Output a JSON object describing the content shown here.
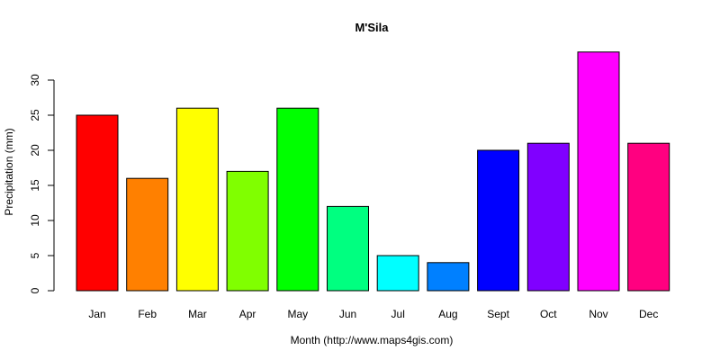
{
  "chart_data": {
    "type": "bar",
    "title": "M'Sila",
    "xlabel": "Month (http://www.maps4gis.com)",
    "ylabel": "Precipitation (mm)",
    "categories": [
      "Jan",
      "Feb",
      "Mar",
      "Apr",
      "May",
      "Jun",
      "Jul",
      "Aug",
      "Sept",
      "Oct",
      "Nov",
      "Dec"
    ],
    "values": [
      25,
      16,
      26,
      17,
      26,
      12,
      5,
      4,
      20,
      21,
      34,
      21
    ],
    "colors": [
      "#ff0000",
      "#ff8000",
      "#ffff00",
      "#80ff00",
      "#00ff00",
      "#00ff80",
      "#00ffff",
      "#0080ff",
      "#0000ff",
      "#8000ff",
      "#ff00ff",
      "#ff0080"
    ],
    "yticks": [
      0,
      5,
      10,
      15,
      20,
      25,
      30
    ],
    "ylim": [
      0,
      34
    ],
    "grid": false,
    "legend": "none"
  }
}
